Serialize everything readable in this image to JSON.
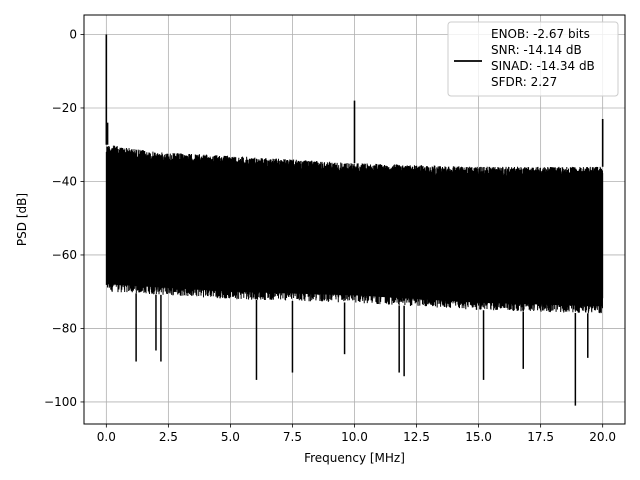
{
  "chart_data": {
    "type": "line",
    "xlabel": "Frequency [MHz]",
    "ylabel": "PSD [dB]",
    "xlim": [
      -0.9,
      20.9
    ],
    "ylim": [
      -106,
      5.3
    ],
    "x_ticks": [
      0.0,
      2.5,
      5.0,
      7.5,
      10.0,
      12.5,
      15.0,
      17.5,
      20.0
    ],
    "x_tick_labels": [
      "0.0",
      "2.5",
      "5.0",
      "7.5",
      "10.0",
      "12.5",
      "15.0",
      "17.5",
      "20.0"
    ],
    "y_ticks": [
      0,
      -20,
      -40,
      -60,
      -80,
      -100
    ],
    "y_tick_labels": [
      "0",
      "−20",
      "−40",
      "−60",
      "−80",
      "−100"
    ],
    "grid": true,
    "legend_position": "top-right",
    "series": [
      {
        "color": "#000000",
        "noise_band_top": [
          [
            0.1,
            -30
          ],
          [
            2.0,
            -32
          ],
          [
            5.0,
            -33
          ],
          [
            10.0,
            -35
          ],
          [
            15.0,
            -36
          ],
          [
            20.0,
            -36
          ]
        ],
        "noise_band_bottom": [
          [
            0.1,
            -70
          ],
          [
            5.0,
            -72
          ],
          [
            10.0,
            -73
          ],
          [
            15.0,
            -75
          ],
          [
            20.0,
            -76
          ]
        ],
        "peaks": [
          {
            "x": 0.0,
            "y": 0.0
          },
          {
            "x": 0.05,
            "y": -24
          },
          {
            "x": 10.0,
            "y": -18
          },
          {
            "x": 20.0,
            "y": -23
          }
        ],
        "min_spikes": [
          {
            "x": 1.2,
            "y": -89
          },
          {
            "x": 2.0,
            "y": -86
          },
          {
            "x": 2.2,
            "y": -89
          },
          {
            "x": 6.05,
            "y": -94
          },
          {
            "x": 7.5,
            "y": -92
          },
          {
            "x": 9.6,
            "y": -87
          },
          {
            "x": 11.8,
            "y": -92
          },
          {
            "x": 12.0,
            "y": -93
          },
          {
            "x": 15.2,
            "y": -94
          },
          {
            "x": 16.8,
            "y": -91
          },
          {
            "x": 18.9,
            "y": -101
          },
          {
            "x": 19.4,
            "y": -88
          }
        ]
      }
    ],
    "legend": {
      "lines": [
        "ENOB: -2.67 bits",
        "SNR: -14.14 dB",
        "SINAD: -14.34 dB",
        "SFDR: 2.27"
      ]
    }
  }
}
